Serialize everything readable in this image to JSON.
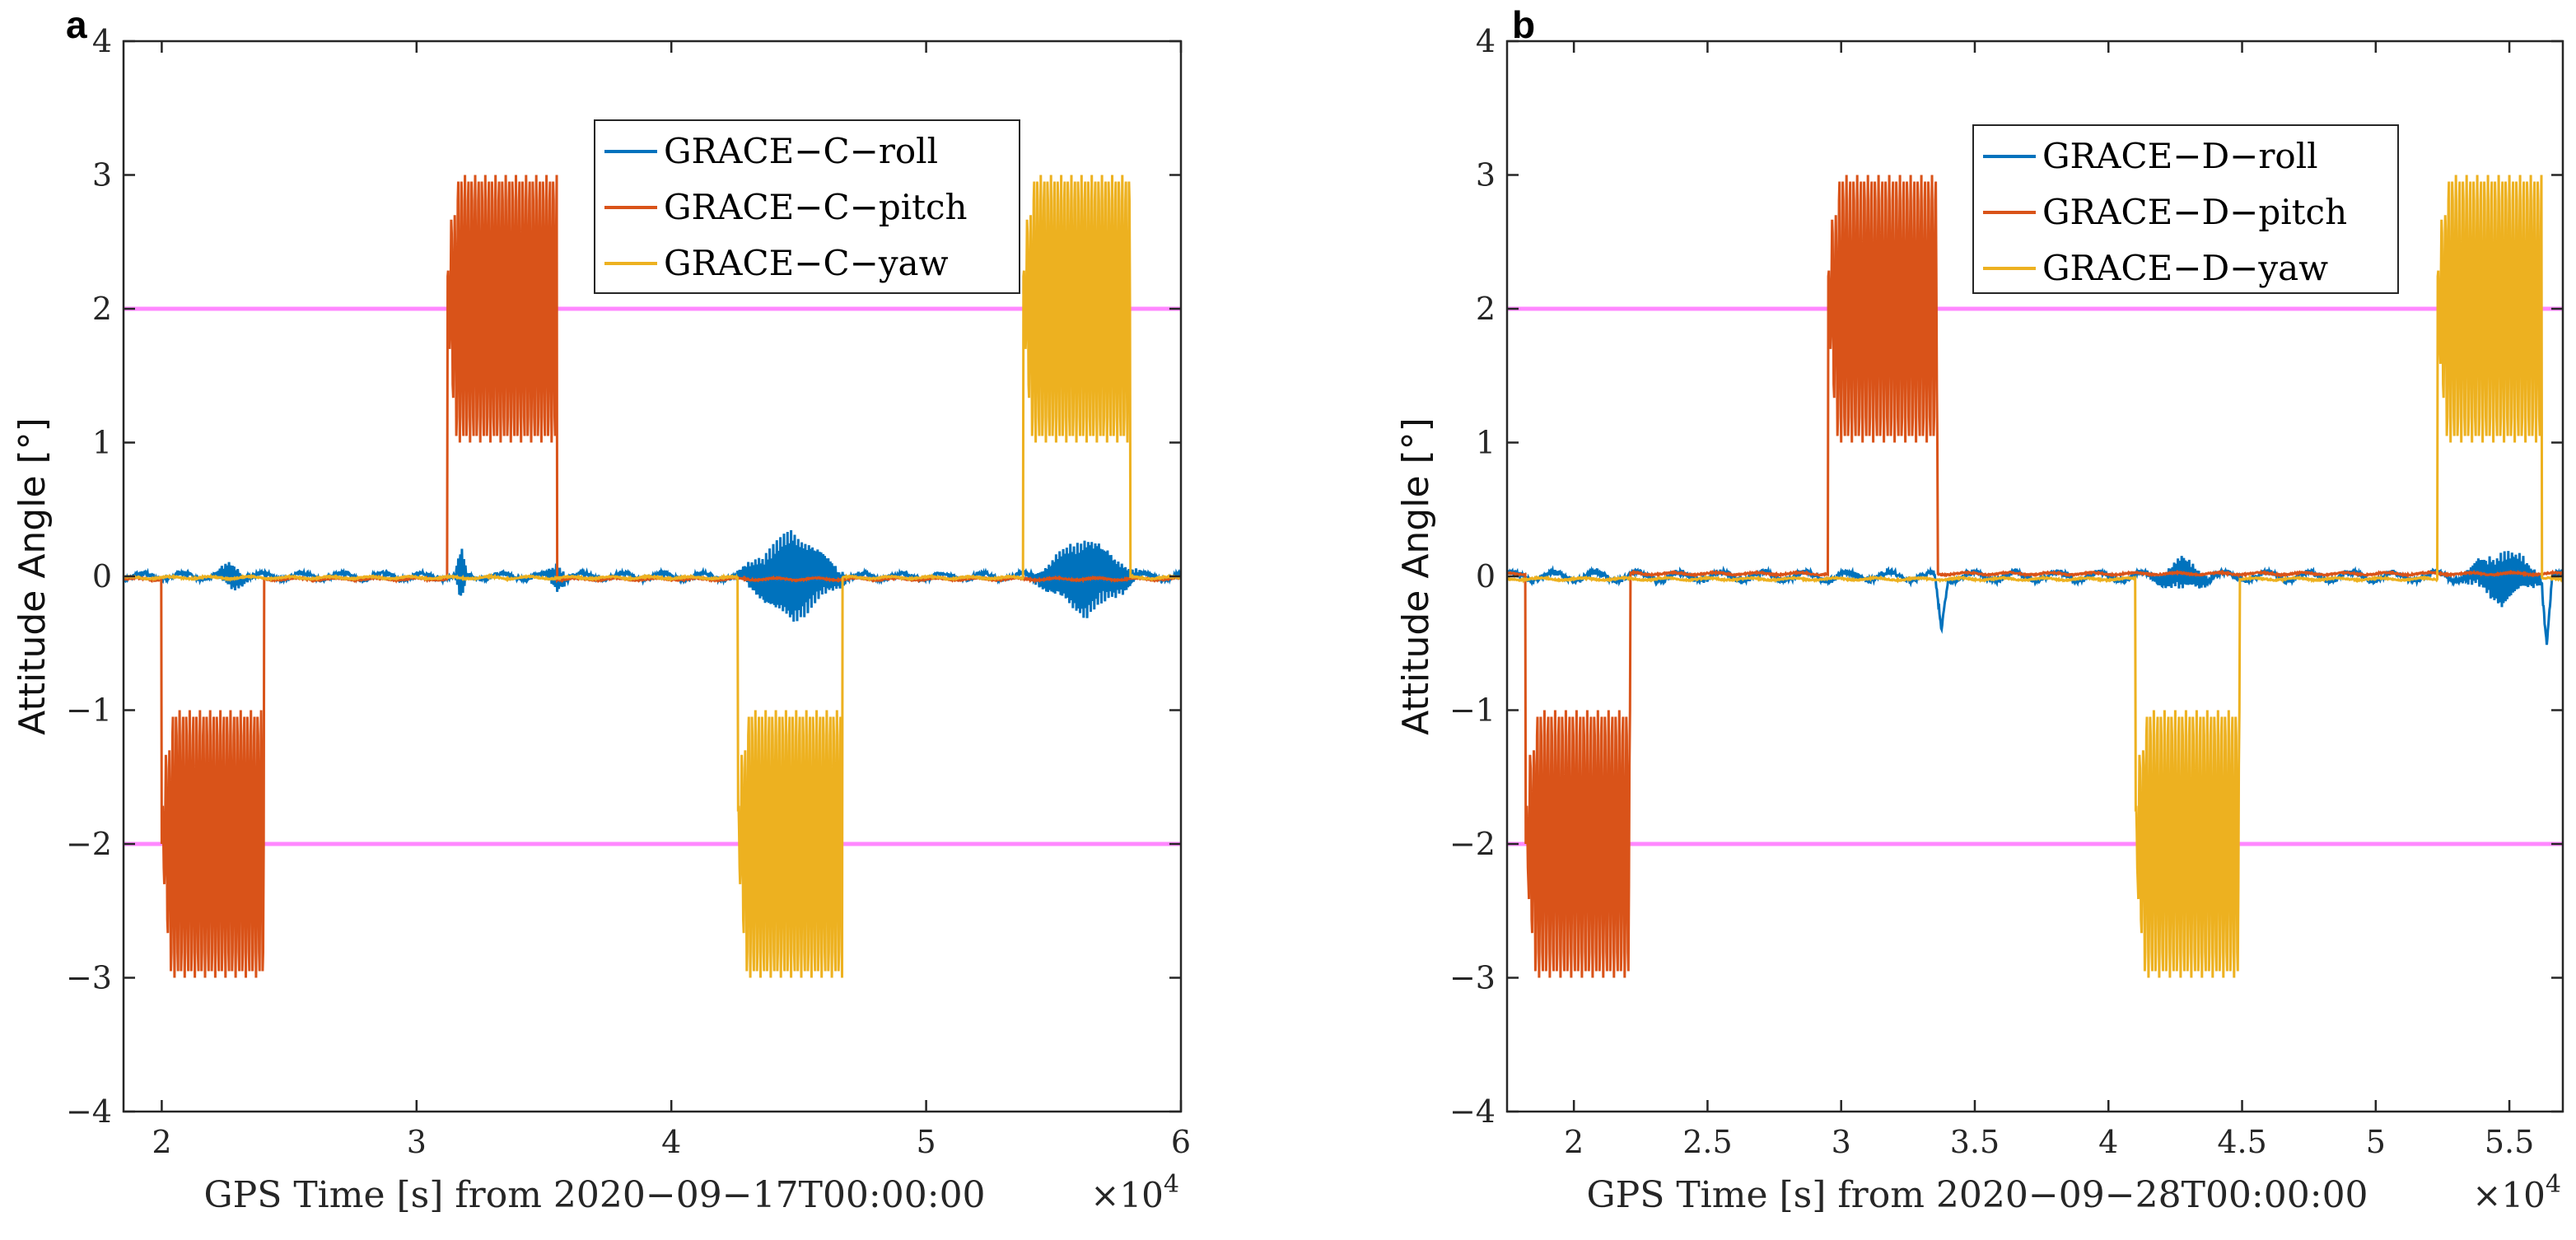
{
  "chart_data": [
    {
      "type": "line",
      "panel_label": "a",
      "xlabel": "GPS Time [s] from 2020−09−17T00:00:00",
      "xexp_base": "×10",
      "xexp_power": "4",
      "ylabel": "Attitude Angle [°]",
      "xlim": [
        1.85,
        6.0
      ],
      "ylim": [
        -4,
        4
      ],
      "xticks": [
        2,
        3,
        4,
        5,
        6
      ],
      "xtick_labels": [
        "2",
        "3",
        "4",
        "5",
        "6"
      ],
      "yticks": [
        -4,
        -3,
        -2,
        -1,
        0,
        1,
        2,
        3,
        4
      ],
      "ytick_labels": [
        "−4",
        "−3",
        "−2",
        "−1",
        "0",
        "1",
        "2",
        "3",
        "4"
      ],
      "threshold_lines": [
        2,
        -2
      ],
      "threshold_color": "#ff88ff",
      "legend": [
        "GRACE−C−roll",
        "GRACE−C−pitch",
        "GRACE−C−yaw"
      ],
      "series": [
        {
          "name": "GRACE−C−roll",
          "color": "#0072bd",
          "baseline": 0.0,
          "noise": 0.03,
          "events": [
            {
              "x0": 2.2,
              "x1": 2.35,
              "amp": 0.1
            },
            {
              "x0": 3.15,
              "x1": 3.2,
              "amp": 0.22
            },
            {
              "x0": 3.5,
              "x1": 3.6,
              "amp": 0.1
            },
            {
              "x0": 4.25,
              "x1": 4.7,
              "amp": 0.35
            },
            {
              "x0": 5.4,
              "x1": 5.85,
              "amp": 0.3
            }
          ]
        },
        {
          "name": "GRACE−C−pitch",
          "color": "#d95319",
          "baseline": -0.02,
          "noise": 0.01,
          "blocks": [
            {
              "x0": 2.0,
              "x1": 2.4,
              "center": -2.0,
              "amp": 1.0,
              "sign": -1
            },
            {
              "x0": 3.12,
              "x1": 3.55,
              "center": 2.0,
              "amp": 1.0,
              "sign": 1
            }
          ]
        },
        {
          "name": "GRACE−C−yaw",
          "color": "#edb120",
          "baseline": -0.01,
          "noise": 0.01,
          "blocks": [
            {
              "x0": 4.26,
              "x1": 4.67,
              "center": -2.0,
              "amp": 1.0,
              "sign": -1
            },
            {
              "x0": 5.38,
              "x1": 5.8,
              "center": 2.0,
              "amp": 1.0,
              "sign": 1
            }
          ]
        }
      ]
    },
    {
      "type": "line",
      "panel_label": "b",
      "xlabel": "GPS Time [s] from 2020−09−28T00:00:00",
      "xexp_base": "×10",
      "xexp_power": "4",
      "ylabel": "Attitude Angle [°]",
      "xlim": [
        1.75,
        5.7
      ],
      "ylim": [
        -4,
        4
      ],
      "xticks": [
        2,
        2.5,
        3,
        3.5,
        4,
        4.5,
        5,
        5.5
      ],
      "xtick_labels": [
        "2",
        "2.5",
        "3",
        "3.5",
        "4",
        "4.5",
        "5",
        "5.5"
      ],
      "yticks": [
        -4,
        -3,
        -2,
        -1,
        0,
        1,
        2,
        3,
        4
      ],
      "ytick_labels": [
        "−4",
        "−3",
        "−2",
        "−1",
        "0",
        "1",
        "2",
        "3",
        "4"
      ],
      "threshold_lines": [
        2,
        -2
      ],
      "threshold_color": "#ff88ff",
      "legend": [
        "GRACE−D−roll",
        "GRACE−D−pitch",
        "GRACE−D−yaw"
      ],
      "series": [
        {
          "name": "GRACE−D−roll",
          "color": "#0072bd",
          "baseline": 0.0,
          "noise": 0.04,
          "events": [
            {
              "x0": 3.35,
              "x1": 3.4,
              "amp": -0.4
            },
            {
              "x0": 4.15,
              "x1": 4.4,
              "amp": 0.12
            },
            {
              "x0": 5.3,
              "x1": 5.65,
              "amp": 0.2
            },
            {
              "x0": 5.62,
              "x1": 5.66,
              "amp": -0.5
            }
          ]
        },
        {
          "name": "GRACE−D−pitch",
          "color": "#d95319",
          "baseline": 0.02,
          "noise": 0.01,
          "blocks": [
            {
              "x0": 1.82,
              "x1": 2.21,
              "center": -2.0,
              "amp": 1.0,
              "sign": -1
            },
            {
              "x0": 2.95,
              "x1": 3.36,
              "center": 2.0,
              "amp": 1.0,
              "sign": 1
            }
          ]
        },
        {
          "name": "GRACE−D−yaw",
          "color": "#edb120",
          "baseline": -0.02,
          "noise": 0.01,
          "blocks": [
            {
              "x0": 4.1,
              "x1": 4.49,
              "center": -2.0,
              "amp": 1.0,
              "sign": -1
            },
            {
              "x0": 5.23,
              "x1": 5.62,
              "center": 2.0,
              "amp": 1.0,
              "sign": 1
            }
          ]
        }
      ]
    }
  ]
}
